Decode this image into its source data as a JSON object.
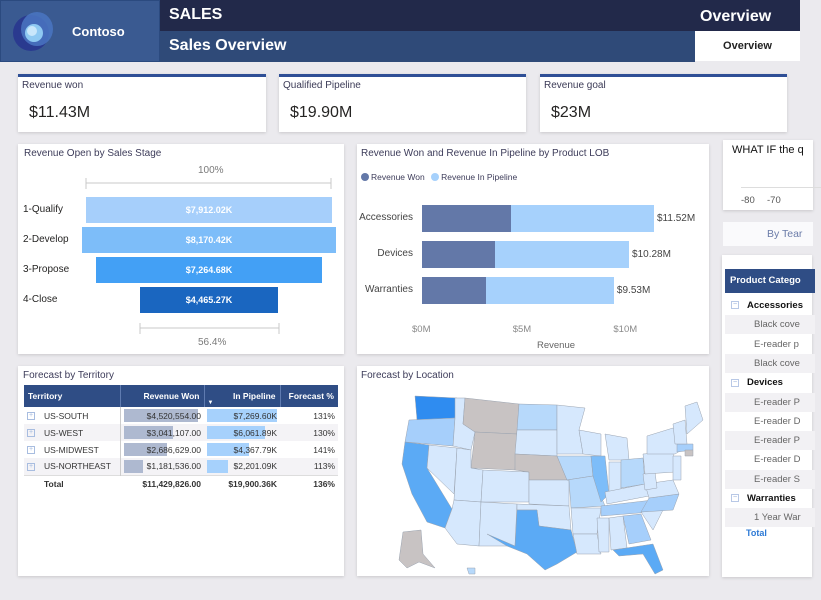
{
  "header": {
    "brand": "Contoso",
    "title": "SALES",
    "subtitle": "Sales Overview",
    "right_title": "Overview",
    "tab_label": "Overview"
  },
  "kpis": [
    {
      "label": "Revenue won",
      "value": "$11.43M"
    },
    {
      "label": "Qualified Pipeline",
      "value": "$19.90M"
    },
    {
      "label": "Revenue goal",
      "value": "$23M"
    }
  ],
  "funnel": {
    "title": "Revenue Open by Sales Stage",
    "top_pct": "100%",
    "bottom_pct": "56.4%",
    "stages": [
      {
        "label": "1-Qualify",
        "value": 7912.02,
        "display": "$7,912.02K",
        "color": "#a6cffb"
      },
      {
        "label": "2-Develop",
        "value": 8170.42,
        "display": "$8,170.42K",
        "color": "#7dbdf9"
      },
      {
        "label": "3-Propose",
        "value": 7264.68,
        "display": "$7,264.68K",
        "color": "#43a0f5"
      },
      {
        "label": "4-Close",
        "value": 4465.27,
        "display": "$4,465.27K",
        "color": "#1a66c0"
      }
    ]
  },
  "lob_chart": {
    "title": "Revenue Won and Revenue In Pipeline by Product LOB",
    "legend": [
      {
        "name": "Revenue Won",
        "color": "#6378a8"
      },
      {
        "name": "Revenue In Pipeline",
        "color": "#a6d1fc"
      }
    ],
    "categories": [
      "Accessories",
      "Devices",
      "Warranties"
    ],
    "won": [
      4.4,
      3.6,
      3.2
    ],
    "total": [
      11.52,
      10.28,
      9.53
    ],
    "total_labels": [
      "$11.52M",
      "$10.28M",
      "$9.53M"
    ],
    "ticks": [
      "$0M",
      "$5M",
      "$10M"
    ],
    "tick_values": [
      0,
      5,
      10
    ],
    "xlabel": "Revenue"
  },
  "chart_data": {
    "type": "bar",
    "title": "Revenue Won and Revenue In Pipeline by Product LOB",
    "categories": [
      "Accessories",
      "Devices",
      "Warranties"
    ],
    "series": [
      {
        "name": "Revenue Won",
        "values": [
          4.4,
          3.6,
          3.2
        ]
      },
      {
        "name": "Revenue In Pipeline",
        "values": [
          7.12,
          6.68,
          6.33
        ]
      }
    ],
    "xlabel": "Revenue",
    "xlim": [
      0,
      12
    ]
  },
  "territory": {
    "title": "Forecast by Territory",
    "columns": [
      "Territory",
      "Revenue Won",
      "In Pipeline",
      "Forecast %"
    ],
    "rows": [
      {
        "name": "US-SOUTH",
        "won": "$4,520,554.00",
        "won_frac": 1.0,
        "pipeline": "$7,269.60K",
        "pipe_frac": 1.0,
        "forecast": "131%"
      },
      {
        "name": "US-WEST",
        "won": "$3,041,107.00",
        "won_frac": 0.67,
        "pipeline": "$6,061.89K",
        "pipe_frac": 0.83,
        "forecast": "130%"
      },
      {
        "name": "US-MIDWEST",
        "won": "$2,686,629.00",
        "won_frac": 0.59,
        "pipeline": "$4,367.79K",
        "pipe_frac": 0.6,
        "forecast": "141%"
      },
      {
        "name": "US-NORTHEAST",
        "won": "$1,181,536.00",
        "won_frac": 0.26,
        "pipeline": "$2,201.09K",
        "pipe_frac": 0.3,
        "forecast": "113%"
      }
    ],
    "total": {
      "label": "Total",
      "won": "$11,429,826.00",
      "pipeline": "$19,900.36K",
      "forecast": "136%"
    }
  },
  "map": {
    "title": "Forecast by Location"
  },
  "whatif": {
    "title": "WHAT IF the q",
    "ticks": [
      "-80",
      "-70"
    ]
  },
  "by_team": "By Tear",
  "product_table": {
    "header": "Product Catego",
    "rows": [
      {
        "type": "cat",
        "label": "Accessories"
      },
      {
        "type": "sub",
        "label": "Black cove"
      },
      {
        "type": "sub",
        "label": "E-reader p"
      },
      {
        "type": "sub",
        "label": "Black cove"
      },
      {
        "type": "cat",
        "label": "Devices"
      },
      {
        "type": "sub",
        "label": "E-reader P"
      },
      {
        "type": "sub",
        "label": "E-reader D"
      },
      {
        "type": "sub",
        "label": "E-reader P"
      },
      {
        "type": "sub",
        "label": "E-reader D"
      },
      {
        "type": "sub",
        "label": "E-reader S"
      },
      {
        "type": "cat",
        "label": "Warranties"
      },
      {
        "type": "sub",
        "label": "1 Year War"
      }
    ],
    "total": "Total"
  }
}
